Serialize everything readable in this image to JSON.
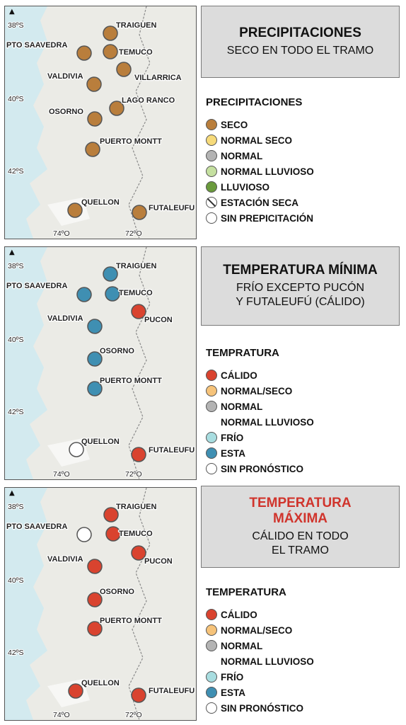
{
  "map_common": {
    "north_symbol": "▲",
    "lat_labels": [
      "38ºS",
      "40ºS",
      "42ºS"
    ],
    "lon_labels": [
      "74ºO",
      "72ºO"
    ]
  },
  "panels": [
    {
      "title": "PRECIPITACIONES",
      "title_color": "#111111",
      "subtitle": "SECO EN TODO EL TRAMO",
      "legend": {
        "title": "PRECIPITACIONES",
        "items": [
          {
            "label": "SECO",
            "color": "#b97e3c"
          },
          {
            "label": "NORMAL SECO",
            "color": "#f6da7a"
          },
          {
            "label": "NORMAL",
            "color": "#b3b3b3"
          },
          {
            "label": "NORMAL LLUVIOSO",
            "color": "#c5e0a0"
          },
          {
            "label": "LLUVIOSO",
            "color": "#6a9a3c"
          },
          {
            "label": "ESTACIÓN SECA",
            "color": "#ffffff",
            "icon": "no-entry-icon"
          },
          {
            "label": "SIN PREPICITACIÓN",
            "color": "#ffffff"
          }
        ]
      },
      "stations": [
        {
          "name": "TRAIGUEN",
          "color": "#b97e3c"
        },
        {
          "name": "PTO SAAVEDRA",
          "color": "#b97e3c"
        },
        {
          "name": "TEMUCO",
          "color": "#b97e3c"
        },
        {
          "name": "VILLARRICA",
          "color": "#b97e3c"
        },
        {
          "name": "VALDIVIA",
          "color": "#b97e3c"
        },
        {
          "name": "LAGO RANCO",
          "color": "#b97e3c"
        },
        {
          "name": "OSORNO",
          "color": "#b97e3c"
        },
        {
          "name": "PUERTO MONTT",
          "color": "#b97e3c"
        },
        {
          "name": "QUELLON",
          "color": "#b97e3c"
        },
        {
          "name": "FUTALEUFU",
          "color": "#b97e3c"
        }
      ]
    },
    {
      "title": "TEMPERATURA MÍNIMA",
      "title_color": "#111111",
      "subtitle_lines": [
        "FRÍO EXCEPTO PUCÓN",
        "Y FUTALEUFÚ (CÁLIDO)"
      ],
      "legend": {
        "title": "TEMPRATURA",
        "items": [
          {
            "label": "CÁLIDO",
            "color": "#d9432f"
          },
          {
            "label": "NORMAL/SECO",
            "color": "#f6c37a"
          },
          {
            "label": "NORMAL",
            "color": "#b3b3b3"
          },
          {
            "label": "NORMAL LLUVIOSO",
            "color": "#ffffff",
            "hidden_swatch": true
          },
          {
            "label": "FRÍO",
            "color": "#a8dde0"
          },
          {
            "label": "ESTA",
            "color": "#3f8fb2"
          },
          {
            "label": "SIN PRONÓSTICO",
            "color": "#ffffff"
          }
        ]
      },
      "stations": [
        {
          "name": "TRAIGUEN",
          "color": "#3f8fb2"
        },
        {
          "name": "PTO SAAVEDRA",
          "color": "#3f8fb2"
        },
        {
          "name": "TEMUCO",
          "color": "#3f8fb2"
        },
        {
          "name": "PUCON",
          "color": "#d9432f"
        },
        {
          "name": "VALDIVIA",
          "color": "#3f8fb2"
        },
        {
          "name": "OSORNO",
          "color": "#3f8fb2"
        },
        {
          "name": "PUERTO MONTT",
          "color": "#3f8fb2"
        },
        {
          "name": "QUELLON",
          "color": "#ffffff"
        },
        {
          "name": "FUTALEUFU",
          "color": "#d9432f"
        }
      ]
    },
    {
      "title_lines": [
        "TEMPERATURA",
        "MÁXIMA"
      ],
      "title_color": "#d0342c",
      "subtitle_lines": [
        "CÁLIDO EN TODO",
        "EL TRAMO"
      ],
      "legend": {
        "title": "TEMPERATURA",
        "items": [
          {
            "label": "CÁLIDO",
            "color": "#d9432f"
          },
          {
            "label": "NORMAL/SECO",
            "color": "#f6c37a"
          },
          {
            "label": "NORMAL",
            "color": "#b3b3b3"
          },
          {
            "label": "NORMAL LLUVIOSO",
            "color": "#ffffff",
            "hidden_swatch": true
          },
          {
            "label": "FRÍO",
            "color": "#a8dde0"
          },
          {
            "label": "ESTA",
            "color": "#3f8fb2"
          },
          {
            "label": "SIN PRONÓSTICO",
            "color": "#ffffff"
          }
        ]
      },
      "stations": [
        {
          "name": "TRAIGUEN",
          "color": "#d9432f"
        },
        {
          "name": "PTO SAAVEDRA",
          "color": "#ffffff"
        },
        {
          "name": "TEMUCO",
          "color": "#d9432f"
        },
        {
          "name": "PUCON",
          "color": "#d9432f"
        },
        {
          "name": "VALDIVIA",
          "color": "#d9432f"
        },
        {
          "name": "OSORNO",
          "color": "#d9432f"
        },
        {
          "name": "PUERTO MONTT",
          "color": "#d9432f"
        },
        {
          "name": "QUELLON",
          "color": "#d9432f"
        },
        {
          "name": "FUTALEUFU",
          "color": "#d9432f"
        }
      ]
    }
  ]
}
